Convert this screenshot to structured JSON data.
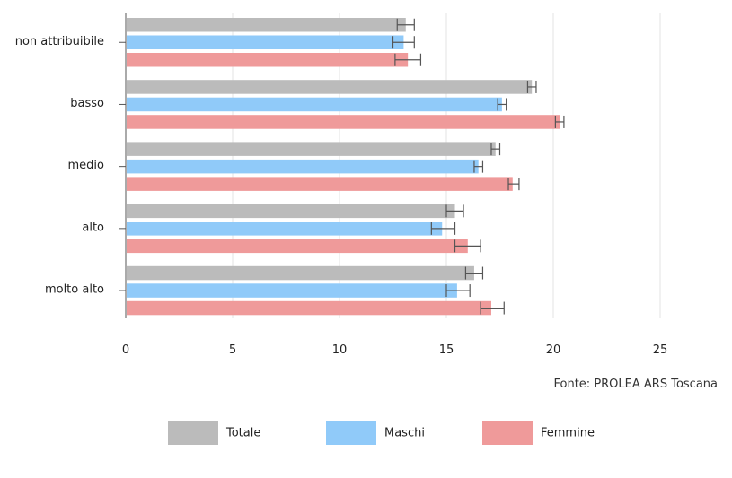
{
  "chart_data": {
    "type": "bar",
    "orientation": "horizontal",
    "categories": [
      "non attribuibile",
      "basso",
      "medio",
      "alto",
      "molto alto"
    ],
    "series": [
      {
        "name": "Totale",
        "color": "#bbbbbb",
        "values": [
          13.1,
          19.0,
          17.3,
          15.4,
          16.3
        ],
        "error_low": [
          12.7,
          18.8,
          17.1,
          15.0,
          15.9
        ],
        "error_high": [
          13.5,
          19.2,
          17.5,
          15.8,
          16.7
        ]
      },
      {
        "name": "Maschi",
        "color": "#90caf9",
        "values": [
          13.0,
          17.6,
          16.5,
          14.8,
          15.5
        ],
        "error_low": [
          12.5,
          17.4,
          16.3,
          14.3,
          15.0
        ],
        "error_high": [
          13.5,
          17.8,
          16.7,
          15.4,
          16.1
        ]
      },
      {
        "name": "Femmine",
        "color": "#ef9a9a",
        "values": [
          13.2,
          20.3,
          18.1,
          16.0,
          17.1
        ],
        "error_low": [
          12.6,
          20.1,
          17.9,
          15.4,
          16.6
        ],
        "error_high": [
          13.8,
          20.5,
          18.4,
          16.6,
          17.7
        ]
      }
    ],
    "xticks": [
      "0",
      "5",
      "10",
      "15",
      "20",
      "25"
    ],
    "xlim": [
      0,
      25
    ],
    "grid": true,
    "legend_position": "bottom",
    "source": "Fonte: PROLEA ARS Toscana"
  }
}
